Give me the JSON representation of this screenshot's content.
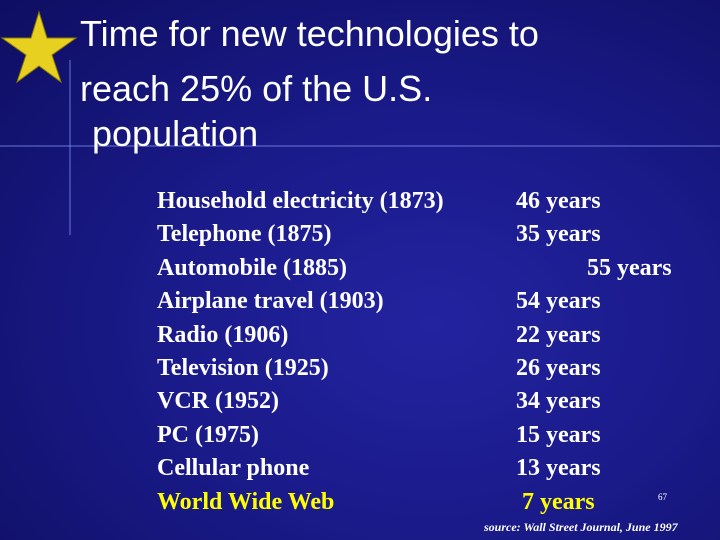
{
  "header": {
    "title_lines": [
      "Time for new technologies to",
      "reach 25% of the U.S.",
      "population"
    ]
  },
  "table": {
    "rows": [
      [
        "Household electricity (1873)",
        "46 years"
      ],
      [
        "Telephone (1875)",
        "35 years"
      ],
      [
        "Automobile (1885)",
        "55 years"
      ],
      [
        "Airplane travel (1903)",
        "54 years"
      ],
      [
        "Radio (1906)",
        "22 years"
      ],
      [
        "Television (1925)",
        "26 years"
      ],
      [
        "VCR (1952)",
        "34 years"
      ],
      [
        "PC (1975)",
        "15 years"
      ],
      [
        "Cellular phone",
        "13 years"
      ],
      [
        "World Wide Web",
        "7 years"
      ]
    ]
  },
  "footer": {
    "page_number": "67",
    "source": "source: Wall Street Journal, June 1997"
  }
}
